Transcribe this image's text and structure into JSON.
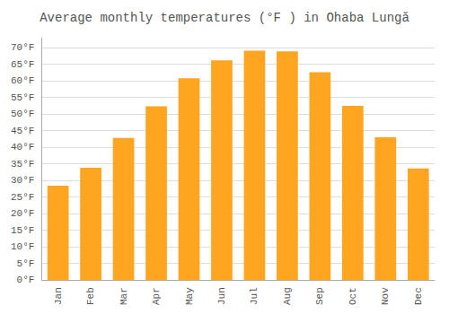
{
  "chart_data": {
    "type": "bar",
    "title": "Average monthly temperatures (°F ) in Ohaba Lungă",
    "categories": [
      "Jan",
      "Feb",
      "Mar",
      "Apr",
      "May",
      "Jun",
      "Jul",
      "Aug",
      "Sep",
      "Oct",
      "Nov",
      "Dec"
    ],
    "values": [
      28.4,
      33.8,
      42.8,
      52.3,
      60.8,
      66.2,
      69.1,
      68.9,
      62.6,
      52.5,
      43.0,
      33.6
    ],
    "color": "#FFA520",
    "ylim": [
      0,
      73
    ],
    "yticks": [
      {
        "value": 0,
        "label": "0°F"
      },
      {
        "value": 5,
        "label": "5°F"
      },
      {
        "value": 10,
        "label": "10°F"
      },
      {
        "value": 15,
        "label": "15°F"
      },
      {
        "value": 20,
        "label": "20°F"
      },
      {
        "value": 25,
        "label": "25°F"
      },
      {
        "value": 30,
        "label": "30°F"
      },
      {
        "value": 35,
        "label": "35°F"
      },
      {
        "value": 40,
        "label": "40°F"
      },
      {
        "value": 45,
        "label": "45°F"
      },
      {
        "value": 50,
        "label": "50°F"
      },
      {
        "value": 55,
        "label": "55°F"
      },
      {
        "value": 60,
        "label": "60°F"
      },
      {
        "value": 65,
        "label": "65°F"
      },
      {
        "value": 70,
        "label": "70°F"
      }
    ],
    "grid": true
  }
}
